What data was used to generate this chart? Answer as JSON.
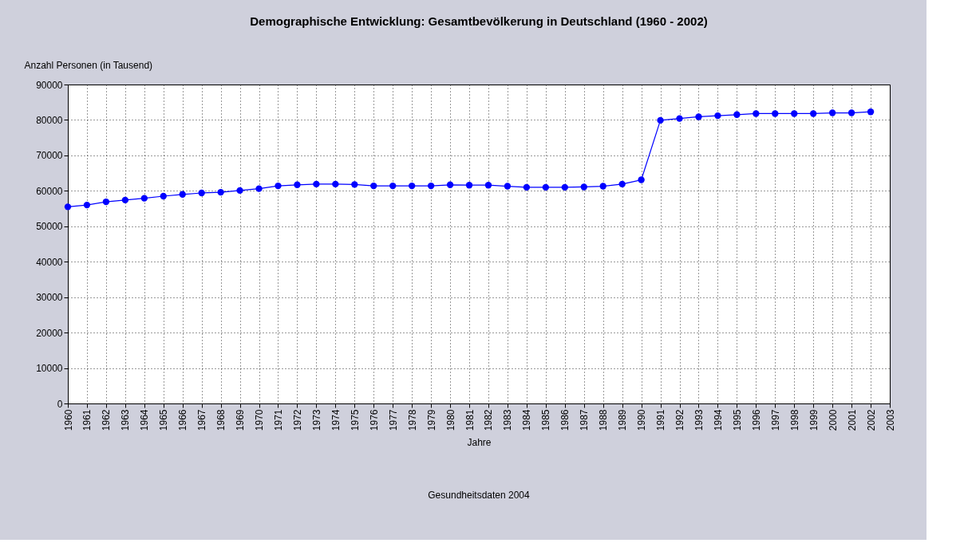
{
  "chart_data": {
    "type": "line",
    "title": "Demographische Entwicklung: Gesamtbevölkerung in Deutschland (1960 - 2002)",
    "xlabel": "Jahre",
    "ylabel": "Anzahl Personen (in Tausend)",
    "annotations": [
      "Gesundheitsdaten 2004"
    ],
    "x": [
      1960,
      1961,
      1962,
      1963,
      1964,
      1965,
      1966,
      1967,
      1968,
      1969,
      1970,
      1971,
      1972,
      1973,
      1974,
      1975,
      1976,
      1977,
      1978,
      1979,
      1980,
      1981,
      1982,
      1983,
      1984,
      1985,
      1986,
      1987,
      1988,
      1989,
      1990,
      1991,
      1992,
      1993,
      1994,
      1995,
      1996,
      1997,
      1998,
      1999,
      2000,
      2001,
      2002
    ],
    "series": [
      {
        "color": "#0000ff",
        "values": [
          55500,
          56000,
          56900,
          57400,
          57900,
          58500,
          59000,
          59400,
          59600,
          60100,
          60600,
          61400,
          61700,
          61900,
          61900,
          61800,
          61400,
          61400,
          61400,
          61400,
          61700,
          61600,
          61600,
          61300,
          61000,
          61000,
          61000,
          61100,
          61300,
          61900,
          63100,
          79900,
          80400,
          80900,
          81200,
          81500,
          81800,
          81800,
          81800,
          81800,
          82000,
          82000,
          82300
        ]
      }
    ],
    "xlim": [
      1960,
      2003
    ],
    "xticks": [
      1960,
      1961,
      1962,
      1963,
      1964,
      1965,
      1966,
      1967,
      1968,
      1969,
      1970,
      1971,
      1972,
      1973,
      1974,
      1975,
      1976,
      1977,
      1978,
      1979,
      1980,
      1981,
      1982,
      1983,
      1984,
      1985,
      1986,
      1987,
      1988,
      1989,
      1990,
      1991,
      1992,
      1993,
      1994,
      1995,
      1996,
      1997,
      1998,
      1999,
      2000,
      2001,
      2002,
      2003
    ],
    "ylim": [
      0,
      90000
    ],
    "yticks": [
      0,
      10000,
      20000,
      30000,
      40000,
      50000,
      60000,
      70000,
      80000,
      90000
    ],
    "grid": true,
    "marker": "circle",
    "line_style": "solid"
  }
}
